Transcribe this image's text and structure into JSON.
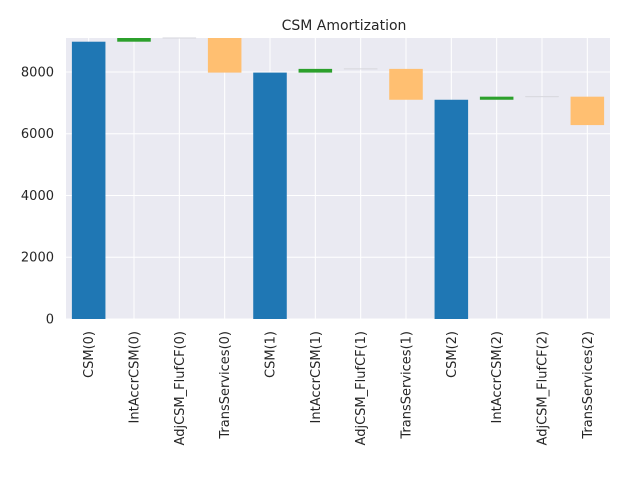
{
  "chart_data": {
    "type": "bar",
    "subtype": "waterfall",
    "title": "CSM Amortization",
    "xlabel": "",
    "ylabel": "",
    "ylim": [
      0,
      9100
    ],
    "yticks": [
      0,
      2000,
      4000,
      6000,
      8000
    ],
    "grid": true,
    "legend": "none",
    "categories": [
      "CSM(0)",
      "IntAccrCSM(0)",
      "AdjCSM_FlufCF(0)",
      "TransServices(0)",
      "CSM(1)",
      "IntAccrCSM(1)",
      "AdjCSM_FlufCF(1)",
      "TransServices(1)",
      "CSM(2)",
      "IntAccrCSM(2)",
      "AdjCSM_FlufCF(2)",
      "TransServices(2)"
    ],
    "bars": [
      {
        "kind": "total",
        "bottom": 0,
        "top": 8980
      },
      {
        "kind": "increase",
        "bottom": 8980,
        "top": 9100
      },
      {
        "kind": "zero",
        "bottom": 9100,
        "top": 9100
      },
      {
        "kind": "decrease",
        "bottom": 7980,
        "top": 9100
      },
      {
        "kind": "total",
        "bottom": 0,
        "top": 7980
      },
      {
        "kind": "increase",
        "bottom": 7980,
        "top": 8100
      },
      {
        "kind": "zero",
        "bottom": 8100,
        "top": 8100
      },
      {
        "kind": "decrease",
        "bottom": 7100,
        "top": 8100
      },
      {
        "kind": "total",
        "bottom": 0,
        "top": 7100
      },
      {
        "kind": "increase",
        "bottom": 7100,
        "top": 7200
      },
      {
        "kind": "zero",
        "bottom": 7200,
        "top": 7200
      },
      {
        "kind": "decrease",
        "bottom": 6280,
        "top": 7200
      }
    ],
    "colors": {
      "total": "#1f77b4",
      "increase": "#2ca02c",
      "decrease": "#ffbf71",
      "zero": "#d6d6dc",
      "plot_bg": "#eaeaf2",
      "grid": "#ffffff"
    }
  }
}
